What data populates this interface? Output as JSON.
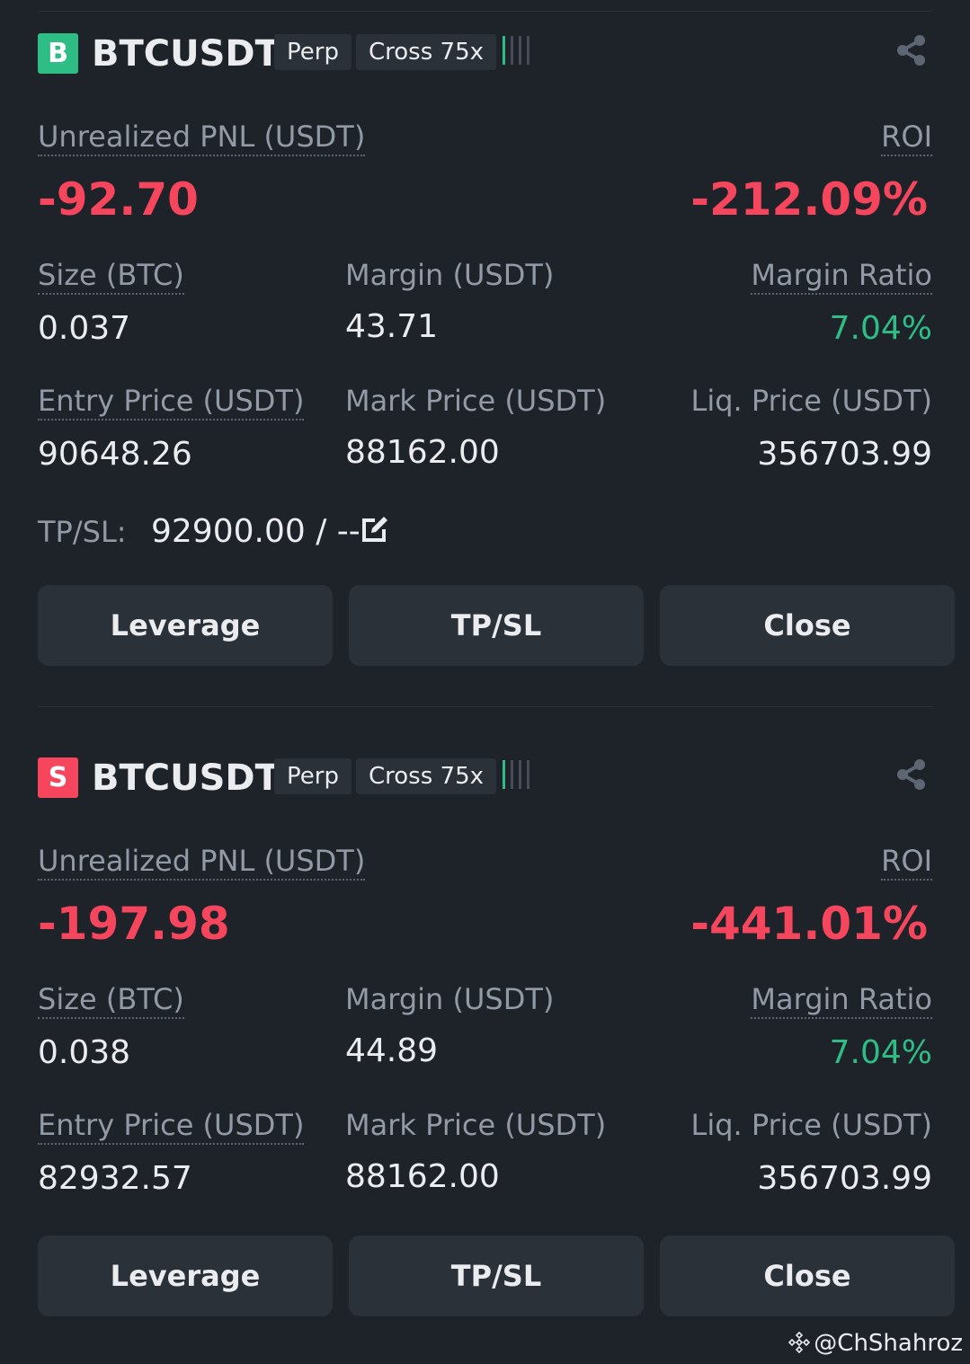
{
  "positions": [
    {
      "side": "B",
      "side_color": "#2ebd85",
      "symbol": "BTCUSDT",
      "type": "Perp",
      "leverage": "Cross 75x",
      "risk_icon": "margin-risk-bars-icon",
      "share_icon": "share-icon",
      "unrealized_pnl_label": "Unrealized PNL (USDT)",
      "unrealized_pnl": "-92.70",
      "roi_label": "ROI",
      "roi": "-212.09%",
      "size_label": "Size (BTC)",
      "size": "0.037",
      "margin_label": "Margin (USDT)",
      "margin": "43.71",
      "margin_ratio_label": "Margin Ratio",
      "margin_ratio": "7.04%",
      "entry_price_label": "Entry Price (USDT)",
      "entry_price": "90648.26",
      "mark_price_label": "Mark Price (USDT)",
      "mark_price": "88162.00",
      "liq_price_label": "Liq. Price (USDT)",
      "liq_price": "356703.99",
      "tpsl_label": "TP/SL:",
      "tpsl_value": "92900.00 / --",
      "buttons": {
        "leverage": "Leverage",
        "tpsl": "TP/SL",
        "close": "Close"
      }
    },
    {
      "side": "S",
      "side_color": "#f6465d",
      "symbol": "BTCUSDT",
      "type": "Perp",
      "leverage": "Cross 75x",
      "risk_icon": "margin-risk-bars-icon",
      "share_icon": "share-icon",
      "unrealized_pnl_label": "Unrealized PNL (USDT)",
      "unrealized_pnl": "-197.98",
      "roi_label": "ROI",
      "roi": "-441.01%",
      "size_label": "Size (BTC)",
      "size": "0.038",
      "margin_label": "Margin (USDT)",
      "margin": "44.89",
      "margin_ratio_label": "Margin Ratio",
      "margin_ratio": "7.04%",
      "entry_price_label": "Entry Price (USDT)",
      "entry_price": "82932.57",
      "mark_price_label": "Mark Price (USDT)",
      "mark_price": "88162.00",
      "liq_price_label": "Liq. Price (USDT)",
      "liq_price": "356703.99",
      "buttons": {
        "leverage": "Leverage",
        "tpsl": "TP/SL",
        "close": "Close"
      }
    }
  ],
  "colors": {
    "negative": "#f6465d",
    "positive": "#2ebd85",
    "background": "#1e2329",
    "button": "#2b3139"
  },
  "watermark": "@ChShahroz"
}
